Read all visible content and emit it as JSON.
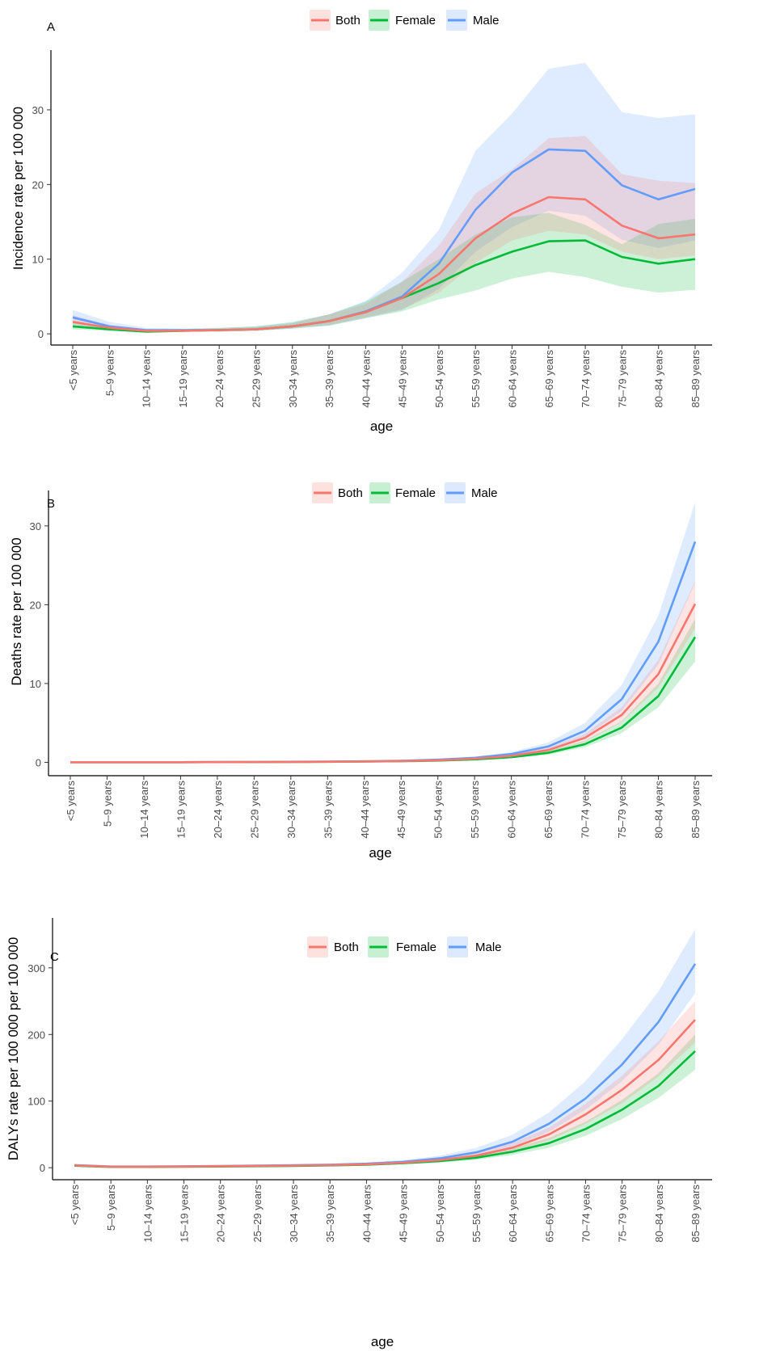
{
  "categories": [
    "<5 years",
    "5–9 years",
    "10–14 years",
    "15–19 years",
    "20–24 years",
    "25–29 years",
    "30–34 years",
    "35–39 years",
    "40–44 years",
    "45–49 years",
    "50–54 years",
    "55–59 years",
    "60–64 years",
    "65–69 years",
    "70–74 years",
    "75–79 years",
    "80–84 years",
    "85–89 years"
  ],
  "legend": [
    {
      "name": "Both",
      "color": "#F8766D",
      "fill": "#F8766D"
    },
    {
      "name": "Female",
      "color": "#00BA38",
      "fill": "#00BA38"
    },
    {
      "name": "Male",
      "color": "#619CFF",
      "fill": "#619CFF"
    }
  ],
  "chart_data": [
    {
      "type": "line",
      "panel_label": "A",
      "xlabel": "age",
      "ylabel": "Incidence rate per 100 000",
      "ylim": [
        -1.5,
        38
      ],
      "yticks": [
        0,
        10,
        20,
        30
      ],
      "grid": false,
      "legend_position": "top",
      "series": [
        {
          "name": "Both",
          "values": [
            1.6,
            0.8,
            0.4,
            0.4,
            0.5,
            0.6,
            1.0,
            1.7,
            2.9,
            4.8,
            8.0,
            12.8,
            16.1,
            18.3,
            18.0,
            14.5,
            12.8,
            13.3
          ],
          "lower": [
            1.0,
            0.5,
            0.2,
            0.3,
            0.3,
            0.5,
            0.8,
            1.2,
            2.2,
            3.3,
            5.5,
            9.5,
            12.5,
            13.8,
            13.3,
            11.0,
            10.0,
            10.5
          ],
          "upper": [
            2.5,
            1.2,
            0.6,
            0.6,
            0.7,
            0.9,
            1.4,
            2.6,
            4.0,
            7.0,
            11.8,
            18.8,
            22.0,
            26.2,
            26.5,
            21.4,
            20.5,
            20.2
          ]
        },
        {
          "name": "Female",
          "values": [
            1.0,
            0.6,
            0.3,
            0.4,
            0.5,
            0.6,
            1.0,
            1.7,
            2.9,
            4.8,
            6.8,
            9.2,
            11.0,
            12.4,
            12.5,
            10.3,
            9.4,
            10.0
          ],
          "lower": [
            0.6,
            0.4,
            0.2,
            0.3,
            0.3,
            0.4,
            0.7,
            1.1,
            2.1,
            3.0,
            4.6,
            5.8,
            7.4,
            8.3,
            7.6,
            6.3,
            5.5,
            5.9
          ],
          "upper": [
            1.5,
            0.9,
            0.5,
            0.6,
            0.8,
            1.0,
            1.6,
            2.6,
            4.3,
            7.0,
            10.0,
            13.3,
            15.6,
            16.2,
            14.6,
            12.0,
            14.7,
            15.4
          ]
        },
        {
          "name": "Male",
          "values": [
            2.2,
            1.0,
            0.5,
            0.5,
            0.5,
            0.6,
            1.0,
            1.7,
            3.0,
            5.0,
            9.4,
            16.6,
            21.6,
            24.7,
            24.5,
            19.9,
            18.0,
            19.4
          ],
          "lower": [
            1.4,
            0.6,
            0.3,
            0.3,
            0.3,
            0.4,
            0.7,
            1.1,
            2.1,
            3.2,
            6.0,
            11.0,
            14.3,
            16.5,
            15.8,
            12.6,
            11.5,
            12.5
          ],
          "upper": [
            3.2,
            1.6,
            0.8,
            0.7,
            0.8,
            1.0,
            1.5,
            2.6,
            4.4,
            8.2,
            13.9,
            24.5,
            29.5,
            35.5,
            36.3,
            29.7,
            28.9,
            29.4
          ]
        }
      ]
    },
    {
      "type": "line",
      "panel_label": "B",
      "xlabel": "age",
      "ylabel": "Deaths rate per 100 000",
      "ylim": [
        -1.7,
        34.5
      ],
      "yticks": [
        0,
        10,
        20,
        30
      ],
      "grid": false,
      "legend_position": "top",
      "series": [
        {
          "name": "Both",
          "values": [
            0.01,
            0.01,
            0.01,
            0.01,
            0.02,
            0.03,
            0.05,
            0.07,
            0.1,
            0.16,
            0.26,
            0.45,
            0.82,
            1.55,
            3.1,
            6.0,
            11.2,
            20.1
          ],
          "lower": [
            0.01,
            0.01,
            0.01,
            0.01,
            0.01,
            0.02,
            0.04,
            0.05,
            0.08,
            0.13,
            0.21,
            0.37,
            0.68,
            1.3,
            2.6,
            5.1,
            9.5,
            17.0
          ],
          "upper": [
            0.02,
            0.02,
            0.02,
            0.02,
            0.03,
            0.04,
            0.07,
            0.09,
            0.13,
            0.2,
            0.32,
            0.55,
            1.0,
            1.85,
            3.6,
            7.0,
            13.0,
            23.0
          ]
        },
        {
          "name": "Female",
          "values": [
            0.01,
            0.01,
            0.01,
            0.01,
            0.02,
            0.02,
            0.04,
            0.06,
            0.09,
            0.14,
            0.22,
            0.37,
            0.65,
            1.2,
            2.3,
            4.4,
            8.4,
            15.9
          ],
          "lower": [
            0.01,
            0.01,
            0.01,
            0.01,
            0.01,
            0.02,
            0.03,
            0.04,
            0.07,
            0.11,
            0.17,
            0.3,
            0.53,
            0.98,
            1.9,
            3.7,
            7.0,
            12.8
          ],
          "upper": [
            0.02,
            0.02,
            0.02,
            0.02,
            0.03,
            0.03,
            0.05,
            0.08,
            0.12,
            0.18,
            0.28,
            0.46,
            0.8,
            1.45,
            2.75,
            5.2,
            10.0,
            18.2
          ]
        },
        {
          "name": "Male",
          "values": [
            0.01,
            0.01,
            0.01,
            0.01,
            0.02,
            0.03,
            0.06,
            0.09,
            0.13,
            0.2,
            0.33,
            0.57,
            1.05,
            2.0,
            4.0,
            8.0,
            15.3,
            28.0
          ],
          "lower": [
            0.01,
            0.01,
            0.01,
            0.01,
            0.01,
            0.02,
            0.04,
            0.06,
            0.1,
            0.16,
            0.26,
            0.45,
            0.85,
            1.6,
            3.2,
            6.5,
            12.4,
            22.8
          ],
          "upper": [
            0.02,
            0.02,
            0.02,
            0.02,
            0.03,
            0.04,
            0.08,
            0.12,
            0.17,
            0.26,
            0.42,
            0.72,
            1.3,
            2.5,
            5.0,
            9.8,
            18.6,
            33.0
          ]
        }
      ]
    },
    {
      "type": "line",
      "panel_label": "C",
      "xlabel": "age",
      "ylabel": "DALYs rate per 100 000 per 100 000",
      "ylim": [
        -18,
        375
      ],
      "yticks": [
        0,
        100,
        200,
        300
      ],
      "grid": false,
      "legend_position": "top",
      "series": [
        {
          "name": "Both",
          "values": [
            3.5,
            1.5,
            1.5,
            1.8,
            2.2,
            2.7,
            3.2,
            4.0,
            5.2,
            7.5,
            11.5,
            18.0,
            30.0,
            50.0,
            80.0,
            117.0,
            162.0,
            222.0
          ],
          "lower": [
            2.6,
            1.1,
            1.1,
            1.3,
            1.6,
            2.0,
            2.4,
            3.0,
            4.0,
            5.8,
            9.0,
            14.5,
            24.5,
            41.0,
            66.0,
            97.0,
            137.0,
            188.0
          ],
          "upper": [
            4.6,
            2.0,
            2.0,
            2.4,
            2.9,
            3.6,
            4.2,
            5.3,
            6.8,
            9.6,
            14.5,
            22.5,
            37.0,
            60.5,
            96.0,
            138.0,
            190.0,
            250.0
          ]
        },
        {
          "name": "Female",
          "values": [
            3.0,
            1.2,
            1.2,
            1.5,
            1.8,
            2.2,
            2.7,
            3.5,
            4.6,
            6.8,
            10.0,
            15.0,
            24.0,
            37.0,
            58.0,
            87.0,
            123.0,
            175.0
          ],
          "lower": [
            2.2,
            0.9,
            0.9,
            1.1,
            1.3,
            1.6,
            2.0,
            2.6,
            3.5,
            5.2,
            7.8,
            11.8,
            19.4,
            30.0,
            48.0,
            73.0,
            105.0,
            147.0
          ],
          "upper": [
            4.0,
            1.6,
            1.6,
            2.0,
            2.4,
            2.9,
            3.5,
            4.5,
            6.0,
            8.7,
            12.6,
            18.6,
            29.0,
            45.0,
            69.0,
            102.0,
            142.0,
            200.0
          ]
        },
        {
          "name": "Male",
          "values": [
            4.0,
            1.8,
            1.8,
            2.1,
            2.6,
            3.2,
            3.7,
            4.6,
            6.0,
            8.8,
            14.0,
            23.0,
            39.0,
            66.0,
            104.0,
            155.0,
            219.0,
            306.0
          ],
          "lower": [
            3.0,
            1.3,
            1.3,
            1.6,
            1.9,
            2.4,
            2.8,
            3.5,
            4.6,
            6.8,
            11.0,
            18.3,
            31.5,
            54.0,
            87.0,
            130.0,
            185.0,
            262.0
          ],
          "upper": [
            5.2,
            2.4,
            2.4,
            2.7,
            3.4,
            4.2,
            4.8,
            6.0,
            7.8,
            11.5,
            18.0,
            29.5,
            49.5,
            83.0,
            130.0,
            193.0,
            265.0,
            358.0
          ]
        }
      ]
    }
  ]
}
